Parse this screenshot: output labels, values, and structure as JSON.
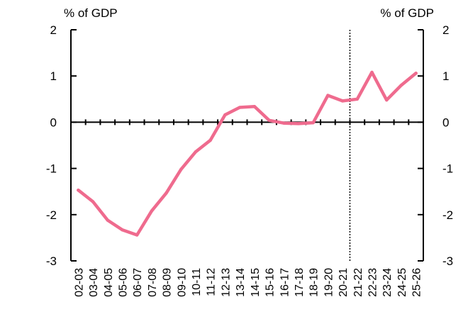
{
  "chart_data": {
    "type": "line",
    "ylabel_left": "% of GDP",
    "ylabel_right": "% of GDP",
    "ylim": [
      -3,
      2
    ],
    "yticks": [
      2,
      1,
      0,
      -1,
      -2,
      -3
    ],
    "ytick_labels": [
      "2",
      "1",
      "0",
      "-1",
      "-2",
      "-3"
    ],
    "categories": [
      "02-03",
      "03-04",
      "04-05",
      "05-06",
      "06-07",
      "07-08",
      "08-09",
      "09-10",
      "10-11",
      "11-12",
      "12-13",
      "13-14",
      "14-15",
      "15-16",
      "16-17",
      "17-18",
      "18-19",
      "19-20",
      "20-21",
      "21-22",
      "22-23",
      "23-24",
      "24-25",
      "25-26"
    ],
    "series": [
      {
        "values": [
          -1.47,
          -1.72,
          -2.12,
          -2.33,
          -2.44,
          -1.92,
          -1.53,
          -1.02,
          -0.64,
          -0.39,
          0.16,
          0.32,
          0.34,
          0.04,
          -0.02,
          -0.03,
          -0.01,
          0.58,
          0.46,
          0.5,
          1.08,
          0.48,
          0.8,
          1.06
        ],
        "color": "#ef6b8e"
      }
    ],
    "forecast_divider_category": "21-22",
    "grid": false,
    "legend": "none"
  }
}
